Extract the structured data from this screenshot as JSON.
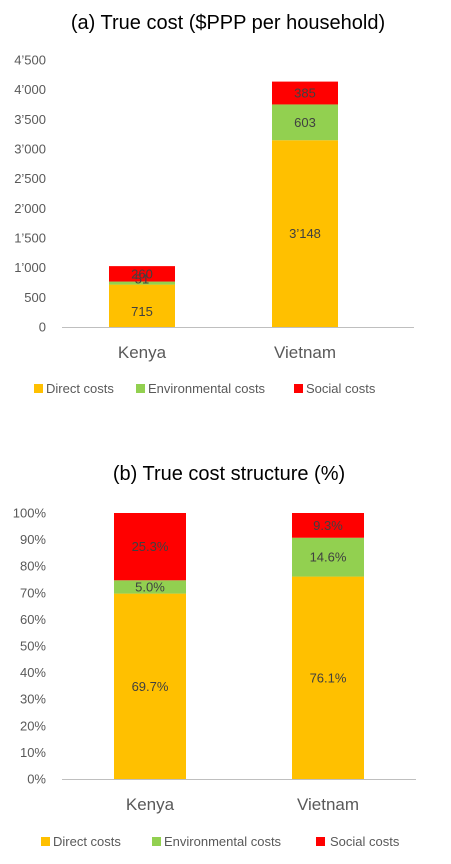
{
  "chart_data": [
    {
      "type": "bar",
      "stacked": true,
      "title": "(a) True cost ($PPP per household)",
      "categories": [
        "Kenya",
        "Vietnam"
      ],
      "series": [
        {
          "name": "Direct costs",
          "values": [
            715,
            3148
          ],
          "labels": [
            "715",
            "3’148"
          ],
          "color": "#FFC000"
        },
        {
          "name": "Environmental costs",
          "values": [
            51,
            603
          ],
          "labels": [
            "51",
            "603"
          ],
          "color": "#92D050"
        },
        {
          "name": "Social costs",
          "values": [
            260,
            385
          ],
          "labels": [
            "260",
            "385"
          ],
          "color": "#FF0000"
        }
      ],
      "ylim": [
        0,
        4500
      ],
      "yticks": [
        0,
        500,
        1000,
        1500,
        2000,
        2500,
        3000,
        3500,
        4000,
        4500
      ],
      "ytick_labels": [
        "0",
        "500",
        "1’000",
        "1’500",
        "2’000",
        "2’500",
        "3’000",
        "3’500",
        "4’000",
        "4’500"
      ],
      "legend": "bottom",
      "grid": false
    },
    {
      "type": "bar",
      "stacked": true,
      "title": "(b) True cost structure (%)",
      "categories": [
        "Kenya",
        "Vietnam"
      ],
      "series": [
        {
          "name": "Direct costs",
          "values": [
            69.7,
            76.1
          ],
          "labels": [
            "69.7%",
            "76.1%"
          ],
          "color": "#FFC000"
        },
        {
          "name": "Environmental costs",
          "values": [
            5.0,
            14.6
          ],
          "labels": [
            "5.0%",
            "14.6%"
          ],
          "color": "#92D050"
        },
        {
          "name": "Social costs",
          "values": [
            25.3,
            9.3
          ],
          "labels": [
            "25.3%",
            "9.3%"
          ],
          "color": "#FF0000"
        }
      ],
      "ylim": [
        0,
        100
      ],
      "yticks": [
        0,
        10,
        20,
        30,
        40,
        50,
        60,
        70,
        80,
        90,
        100
      ],
      "ytick_labels": [
        "0%",
        "10%",
        "20%",
        "30%",
        "40%",
        "50%",
        "60%",
        "70%",
        "80%",
        "90%",
        "100%"
      ],
      "legend": "bottom",
      "grid": false
    }
  ]
}
